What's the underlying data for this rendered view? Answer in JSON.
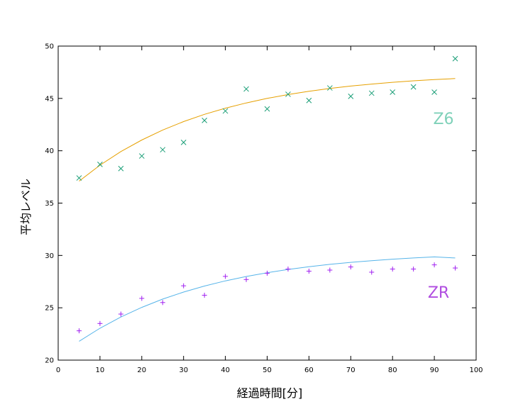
{
  "chart_data": {
    "type": "scatter",
    "title": "",
    "xlabel": "経過時間[分]",
    "ylabel": "平均レベル",
    "xlim": [
      0,
      100
    ],
    "ylim": [
      20,
      50
    ],
    "xticks": [
      0,
      10,
      20,
      30,
      40,
      50,
      60,
      70,
      80,
      90,
      100
    ],
    "yticks": [
      20,
      25,
      30,
      35,
      40,
      45,
      50
    ],
    "grid": false,
    "x": [
      5,
      10,
      15,
      20,
      25,
      30,
      35,
      40,
      45,
      50,
      55,
      60,
      65,
      70,
      75,
      80,
      85,
      90,
      95
    ],
    "series": [
      {
        "name": "Z6",
        "marker": "x",
        "color": "#1a9e77",
        "label_color": "#7fd1b9",
        "fit_color": "#e6a000",
        "values": [
          37.4,
          38.7,
          38.3,
          39.5,
          40.1,
          40.8,
          42.9,
          43.8,
          45.9,
          44.0,
          45.4,
          44.8,
          46.0,
          45.2,
          45.5,
          45.6,
          46.1,
          45.6,
          48.8
        ],
        "fit": [
          37.1,
          38.62,
          39.92,
          41.03,
          41.98,
          42.79,
          43.48,
          44.07,
          44.57,
          45.0,
          45.37,
          45.68,
          45.95,
          46.18,
          46.37,
          46.54,
          46.68,
          46.8,
          46.9
        ]
      },
      {
        "name": "ZR",
        "marker": "+",
        "color": "#a020f0",
        "label_color": "#b04de0",
        "fit_color": "#56b4e9",
        "values": [
          22.8,
          23.5,
          24.4,
          25.9,
          25.5,
          27.1,
          26.2,
          28.0,
          27.7,
          28.3,
          28.7,
          28.5,
          28.6,
          28.9,
          28.4,
          28.7,
          28.7,
          29.1,
          28.8
        ],
        "fit": [
          21.8,
          23.05,
          24.12,
          25.04,
          25.83,
          26.5,
          27.08,
          27.57,
          27.99,
          28.35,
          28.66,
          28.92,
          29.15,
          29.34,
          29.5,
          29.64,
          29.76,
          29.86,
          29.76
        ]
      }
    ]
  }
}
